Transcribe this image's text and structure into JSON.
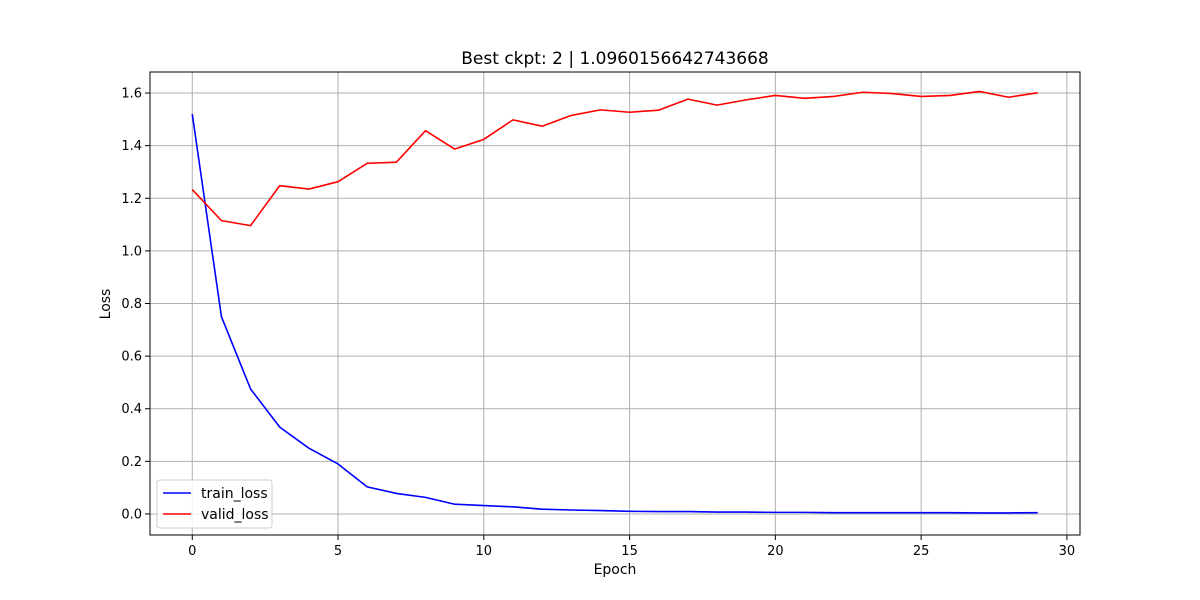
{
  "chart_data": {
    "type": "line",
    "title": "Best ckpt: 2 | 1.0960156642743668",
    "xlabel": "Epoch",
    "ylabel": "Loss",
    "xlim": [
      -1.45,
      30.45
    ],
    "ylim": [
      -0.08,
      1.68
    ],
    "xticks": [
      0,
      5,
      10,
      15,
      20,
      25,
      30
    ],
    "yticks": [
      0.0,
      0.2,
      0.4,
      0.6,
      0.8,
      1.0,
      1.2,
      1.4,
      1.6
    ],
    "grid": true,
    "legend_position": "bottom-left",
    "x": [
      0,
      1,
      2,
      3,
      4,
      5,
      6,
      7,
      8,
      9,
      10,
      11,
      12,
      13,
      14,
      15,
      16,
      17,
      18,
      19,
      20,
      21,
      22,
      23,
      24,
      25,
      26,
      27,
      28,
      29
    ],
    "series": [
      {
        "name": "train_loss",
        "color": "#0000ff",
        "values": [
          1.52,
          0.75,
          0.475,
          0.33,
          0.25,
          0.19,
          0.103,
          0.078,
          0.063,
          0.037,
          0.032,
          0.027,
          0.018,
          0.015,
          0.013,
          0.01,
          0.009,
          0.009,
          0.007,
          0.007,
          0.006,
          0.006,
          0.005,
          0.005,
          0.005,
          0.005,
          0.005,
          0.004,
          0.004,
          0.005
        ]
      },
      {
        "name": "valid_loss",
        "color": "#ff0000",
        "values": [
          1.233,
          1.115,
          1.096,
          1.248,
          1.235,
          1.263,
          1.333,
          1.337,
          1.457,
          1.387,
          1.424,
          1.498,
          1.474,
          1.515,
          1.536,
          1.527,
          1.535,
          1.577,
          1.554,
          1.574,
          1.591,
          1.58,
          1.587,
          1.603,
          1.598,
          1.587,
          1.591,
          1.606,
          1.584,
          1.601
        ]
      }
    ]
  }
}
